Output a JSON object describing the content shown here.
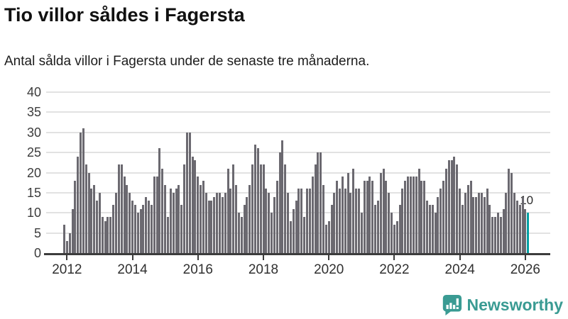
{
  "header": {
    "title": "Tio villor såldes i Fagersta",
    "subtitle": "Antal sålda villor i Fagersta under de senaste tre månaderna."
  },
  "chart_data": {
    "type": "bar",
    "title": "Tio villor såldes i Fagersta",
    "subtitle": "Antal sålda villor i Fagersta under de senaste tre månaderna.",
    "xlabel": "",
    "ylabel": "",
    "ylim": [
      0,
      40
    ],
    "yticks": [
      0,
      5,
      10,
      15,
      20,
      25,
      30,
      35,
      40
    ],
    "grid": "horizontal",
    "frequency": "monthly",
    "start_month": "2011-12",
    "values": [
      7,
      3,
      5,
      11,
      18,
      24,
      30,
      31,
      22,
      20,
      16,
      17,
      13,
      15,
      9,
      8,
      9,
      9,
      12,
      15,
      22,
      22,
      19,
      17,
      15,
      13,
      12,
      10,
      11,
      12,
      14,
      13,
      12,
      19,
      19,
      26,
      21,
      17,
      9,
      16,
      15,
      16,
      17,
      12,
      22,
      30,
      30,
      24,
      23,
      19,
      17,
      18,
      15,
      13,
      13,
      14,
      15,
      15,
      14,
      15,
      21,
      16,
      22,
      17,
      10,
      9,
      12,
      14,
      17,
      22,
      27,
      26,
      22,
      22,
      16,
      15,
      10,
      14,
      18,
      25,
      28,
      22,
      15,
      8,
      11,
      13,
      16,
      16,
      9,
      16,
      16,
      19,
      22,
      25,
      25,
      17,
      7,
      8,
      12,
      15,
      18,
      16,
      19,
      16,
      20,
      15,
      21,
      16,
      16,
      10,
      18,
      18,
      19,
      18,
      12,
      13,
      20,
      21,
      18,
      15,
      10,
      7,
      8,
      12,
      16,
      18,
      19,
      19,
      19,
      19,
      21,
      18,
      18,
      13,
      12,
      12,
      10,
      14,
      16,
      18,
      21,
      23,
      23,
      24,
      22,
      16,
      12,
      15,
      17,
      18,
      14,
      14,
      15,
      15,
      14,
      16,
      12,
      9,
      9,
      10,
      9,
      11,
      15,
      21,
      20,
      15,
      13,
      12,
      14,
      11,
      10
    ],
    "xticks": [
      {
        "label": "2012",
        "index": 1
      },
      {
        "label": "2014",
        "index": 25
      },
      {
        "label": "2016",
        "index": 49
      },
      {
        "label": "2018",
        "index": 73
      },
      {
        "label": "2020",
        "index": 97
      },
      {
        "label": "2022",
        "index": 121
      },
      {
        "label": "2024",
        "index": 145
      },
      {
        "label": "2026",
        "index": 169
      }
    ],
    "bar_color": "#6b6970",
    "highlight": {
      "index": 170,
      "value": 10,
      "label": "10",
      "color": "#00a0a3"
    },
    "gridline_color": "#e2e2e2",
    "axis_color": "#3c3c3c"
  },
  "footer": {
    "brand": "Newsworthy",
    "brand_color": "#3a9b93",
    "logo_icon": "bar-chart-speech-bubble-icon"
  }
}
